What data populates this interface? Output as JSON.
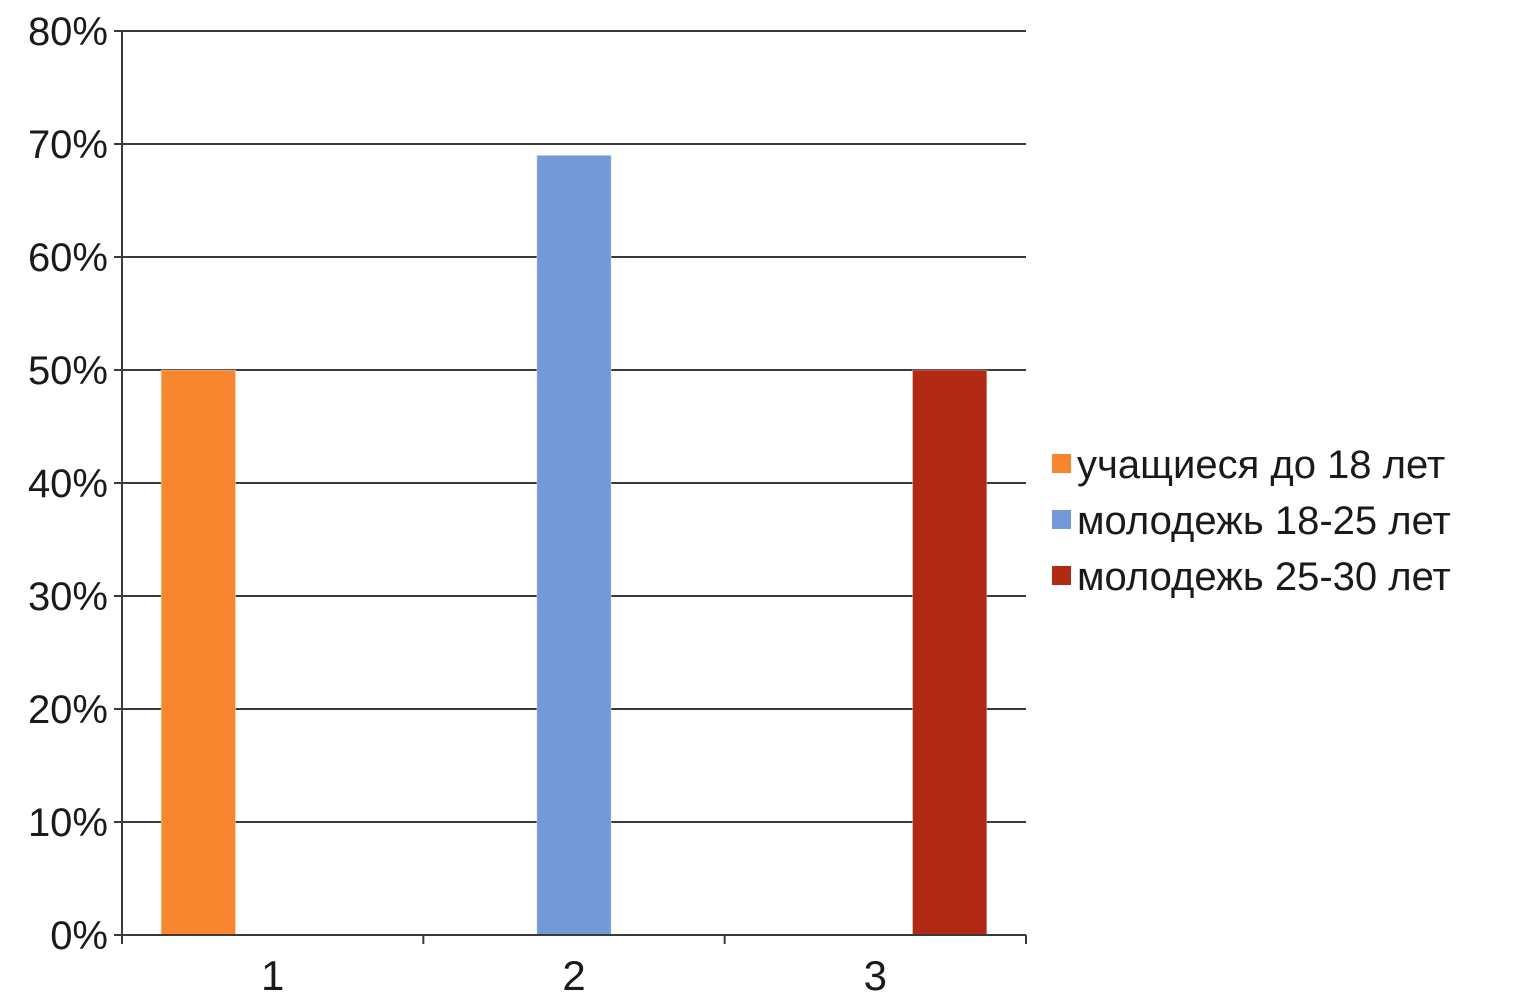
{
  "chart_data": {
    "type": "bar",
    "categories": [
      "1",
      "2",
      "3"
    ],
    "series": [
      {
        "name": "учащиеся до 18 лет",
        "color": "#f7862f",
        "values": [
          50,
          0,
          0
        ]
      },
      {
        "name": "молодежь 18-25 лет",
        "color": "#7399d8",
        "values": [
          0,
          69,
          0
        ]
      },
      {
        "name": "молодежь 25-30 лет",
        "color": "#b02a14",
        "values": [
          0,
          0,
          50
        ]
      }
    ],
    "unit": "%",
    "ylim": [
      0,
      80
    ],
    "y_ticks": [
      "0%",
      "10%",
      "20%",
      "30%",
      "40%",
      "50%",
      "60%",
      "70%",
      "80%"
    ],
    "title": "",
    "xlabel": "",
    "ylabel": "",
    "grid": true,
    "legend_position": "right"
  }
}
